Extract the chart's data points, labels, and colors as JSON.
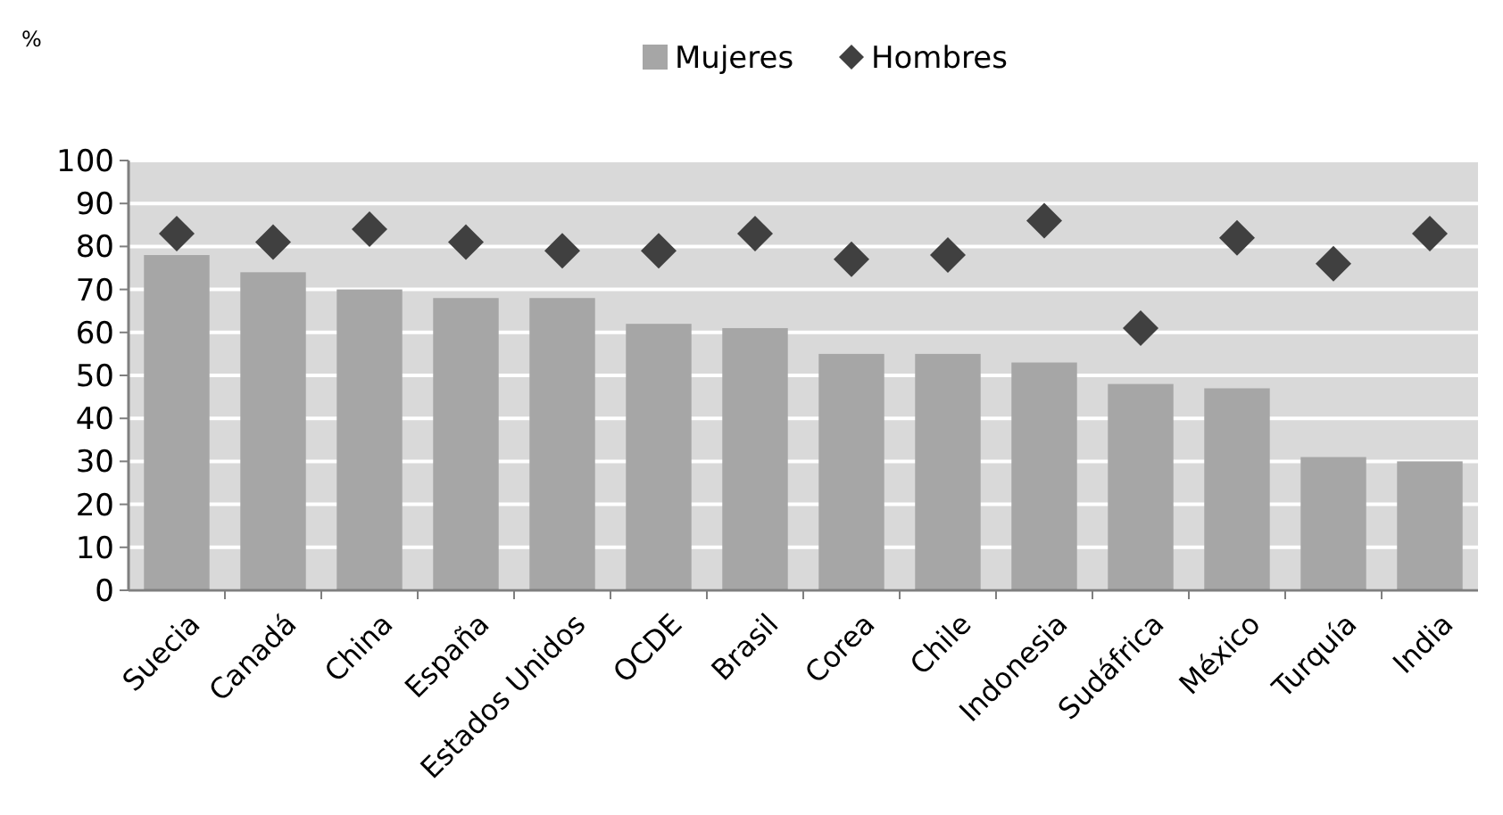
{
  "chart_data": {
    "type": "bar",
    "ylabel": "%",
    "categories": [
      "Suecia",
      "Canadá",
      "China",
      "España",
      "Estados Unidos",
      "OCDE",
      "Brasil",
      "Corea",
      "Chile",
      "Indonesia",
      "Sudáfrica",
      "México",
      "Turquía",
      "India"
    ],
    "series": [
      {
        "name": "Mujeres",
        "color": "#a6a6a6",
        "values": [
          78,
          74,
          70,
          68,
          68,
          62,
          61,
          55,
          55,
          53,
          48,
          47,
          31,
          30
        ]
      },
      {
        "name": "Hombres",
        "type": "scatter",
        "color": "#404040",
        "marker": "diamond",
        "values": [
          83,
          81,
          84,
          81,
          79,
          79,
          83,
          77,
          78,
          86,
          61,
          82,
          76,
          83
        ]
      }
    ],
    "ylim": [
      0,
      100
    ],
    "yticks": [
      0,
      10,
      20,
      30,
      40,
      50,
      60,
      70,
      80,
      90,
      100
    ],
    "grid": "y",
    "legend": "top"
  }
}
